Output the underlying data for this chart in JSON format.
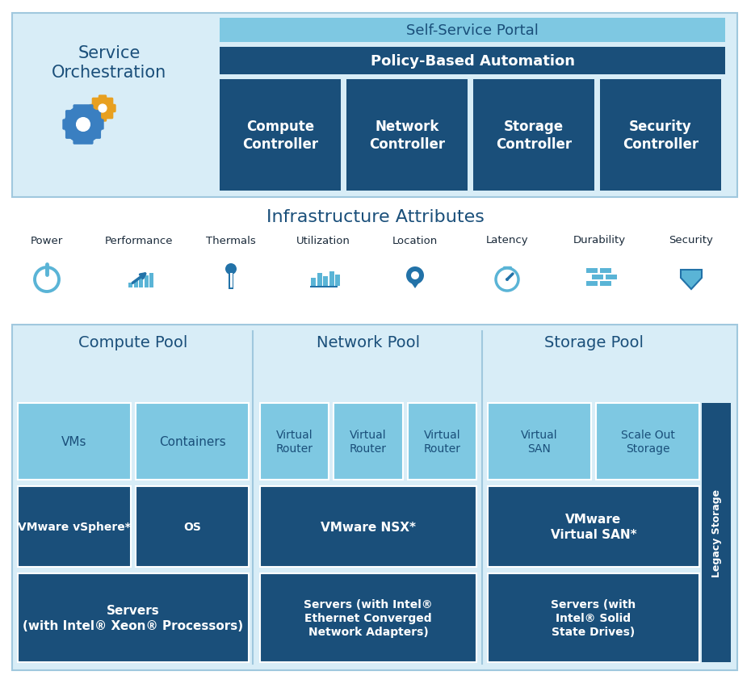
{
  "bg_color": "#ffffff",
  "light_blue_outer": "#cce4f0",
  "light_blue_bg": "#daeef8",
  "medium_blue": "#5dade2",
  "dark_blue": "#1a4f7a",
  "steel_blue": "#2e86c1",
  "light_cell": "#7bc8e2",
  "pale_blue": "#e8f4fb",
  "border_color": "#9fc8de",
  "infra_title": "Infrastructure Attributes",
  "infra_attrs": [
    "Power",
    "Performance",
    "Thermals",
    "Utilization",
    "Location",
    "Latency",
    "Durability",
    "Security"
  ],
  "portal_text": "Self-Service Portal",
  "automation_text": "Policy-Based Automation",
  "controllers": [
    "Compute\nController",
    "Network\nController",
    "Storage\nController",
    "Security\nController"
  ],
  "compute_row1": [
    "VMs",
    "Containers"
  ],
  "compute_row2": [
    "VMware vSphere*",
    "OS"
  ],
  "compute_row3": "Servers\n(with Intel® Xeon® Processors)",
  "network_row1": [
    "Virtual\nRouter",
    "Virtual\nRouter",
    "Virtual\nRouter"
  ],
  "network_row2": "VMware NSX*",
  "network_row3": "Servers (with Intel®\nEthernet Converged\nNetwork Adapters)",
  "storage_row1": [
    "Virtual\nSAN",
    "Scale Out\nStorage"
  ],
  "storage_row2": "VMware\nVirtual SAN*",
  "storage_row3": "Servers (with\nIntel® Solid\nState Drives)",
  "legacy_storage": "Legacy Storage"
}
